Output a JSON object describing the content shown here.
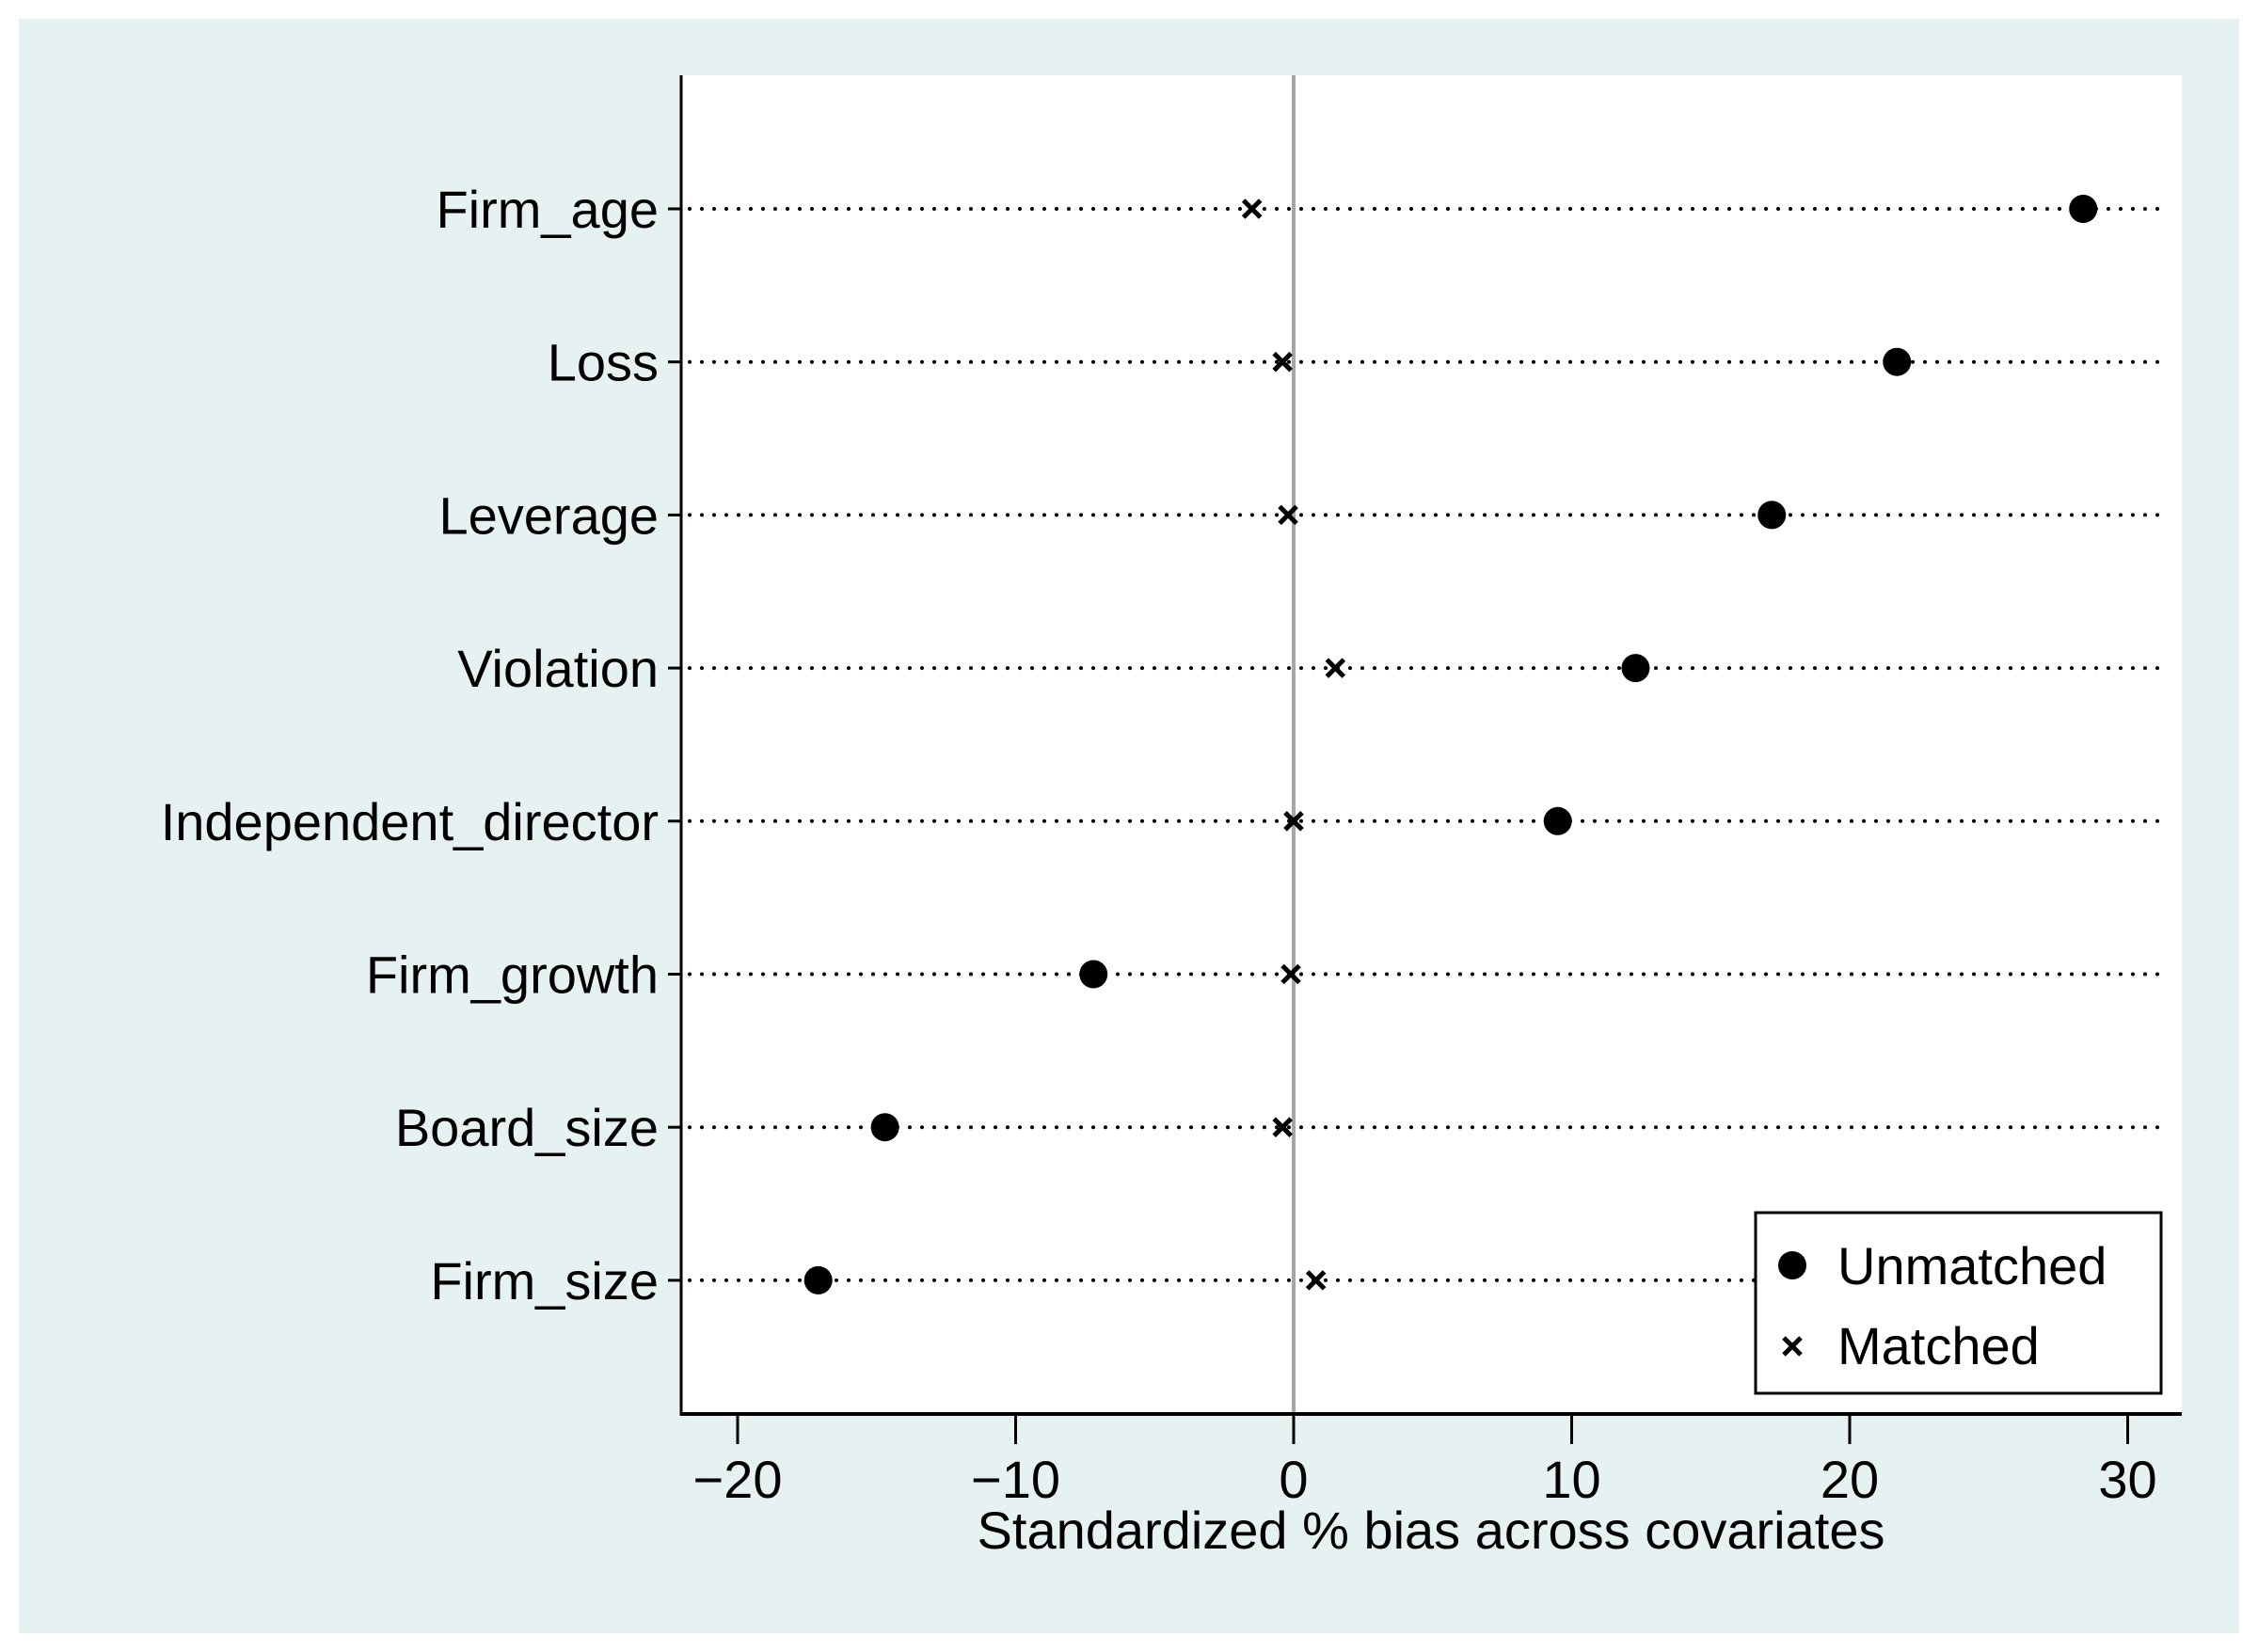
{
  "chart_data": {
    "type": "scatter",
    "title": "",
    "xlabel": "Standardized % bias across covariates",
    "ylabel": "",
    "xlim": [
      -22,
      32
    ],
    "xticks": [
      -20,
      -10,
      0,
      10,
      20,
      30
    ],
    "xtick_labels": [
      "−20",
      "−10",
      "0",
      "10",
      "20",
      "30"
    ],
    "categories": [
      "Firm_age",
      "Loss",
      "Leverage",
      "Violation",
      "Independent_director",
      "Firm_growth",
      "Board_size",
      "Firm_size"
    ],
    "series": [
      {
        "name": "Unmatched",
        "marker": "circle",
        "values": [
          28.4,
          21.7,
          17.2,
          12.3,
          9.5,
          -7.2,
          -14.7,
          -17.1
        ]
      },
      {
        "name": "Matched",
        "marker": "x",
        "values": [
          -1.5,
          -0.4,
          -0.2,
          1.5,
          0.0,
          -0.1,
          -0.4,
          0.8
        ]
      }
    ],
    "reference_line": 0,
    "grid": "dotted horizontal lines per covariate",
    "legend_position": "bottom-right",
    "colors": {
      "background": "#e6f1f1",
      "plot": "#ffffff",
      "marks": "#000000",
      "reference_line": "#a6a6a6"
    }
  }
}
